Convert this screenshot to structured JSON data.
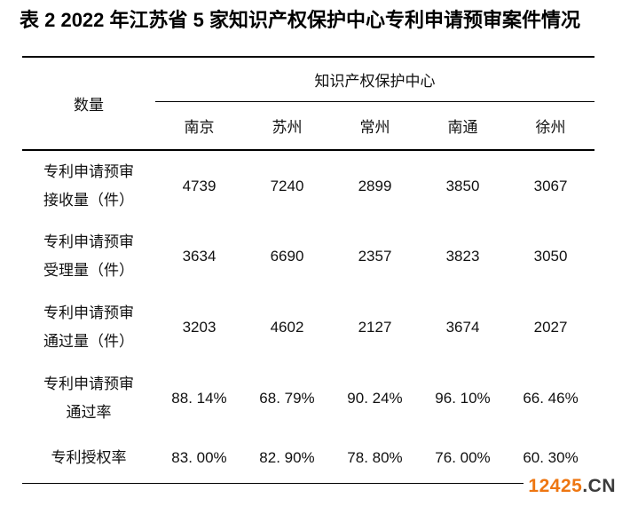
{
  "title": "表 2 2022 年江苏省 5 家知识产权保护中心专利申请预审案件情况",
  "table": {
    "corner_header": "数量",
    "group_header": "知识产权保护中心",
    "columns": [
      "南京",
      "苏州",
      "常州",
      "南通",
      "徐州"
    ],
    "rows": [
      {
        "label": "专利申请预审\n接收量（件）",
        "values": [
          "4739",
          "7240",
          "2899",
          "3850",
          "3067"
        ]
      },
      {
        "label": "专利申请预审\n受理量（件）",
        "values": [
          "3634",
          "6690",
          "2357",
          "3823",
          "3050"
        ]
      },
      {
        "label": "专利申请预审\n通过量（件）",
        "values": [
          "3203",
          "4602",
          "2127",
          "3674",
          "2027"
        ]
      },
      {
        "label": "专利申请预审\n通过率",
        "values": [
          "88. 14%",
          "68. 79%",
          "90. 24%",
          "96. 10%",
          "66. 46%"
        ]
      },
      {
        "label": "专利授权率",
        "values": [
          "83. 00%",
          "82. 90%",
          "78. 80%",
          "76. 00%",
          "60. 30%"
        ]
      }
    ]
  },
  "watermark": {
    "number": "12425",
    "suffix": ".CN",
    "number_color": "#EE7611",
    "suffix_color": "#3B3B3B"
  },
  "colors": {
    "text": "#111111",
    "rule": "#000000",
    "background": "#FFFFFF"
  }
}
